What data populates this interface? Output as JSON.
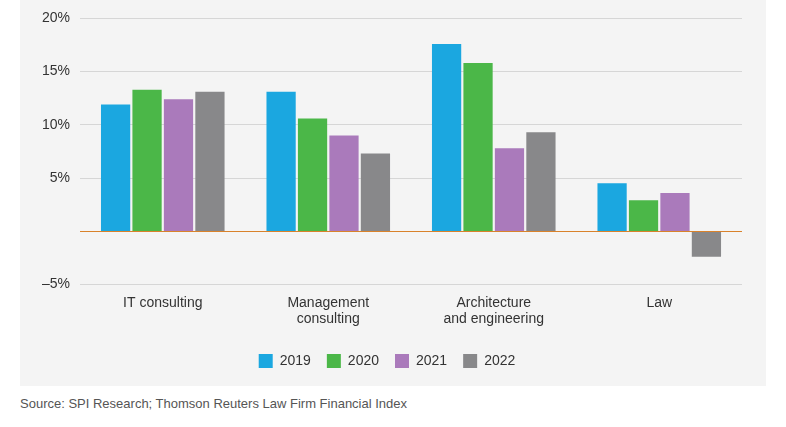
{
  "chart_data": {
    "type": "bar",
    "source": "Source: SPI Research; Thomson Reuters Law Firm Financial Index",
    "categories": [
      "IT consulting",
      "Management consulting",
      "Architecture and engineering",
      "Law"
    ],
    "series": [
      {
        "name": "2019",
        "color": "#1ba7e0",
        "values": [
          11.9,
          13.1,
          17.6,
          4.5
        ]
      },
      {
        "name": "2020",
        "color": "#4bb748",
        "values": [
          13.3,
          10.6,
          15.8,
          2.9
        ]
      },
      {
        "name": "2021",
        "color": "#aa7abb",
        "values": [
          12.4,
          9.0,
          7.8,
          3.6
        ]
      },
      {
        "name": "2022",
        "color": "#88888a",
        "values": [
          13.1,
          7.3,
          9.3,
          -2.4
        ]
      }
    ],
    "ylim": [
      -5,
      20
    ],
    "yticks": [
      {
        "value": -5,
        "label": "–5%"
      },
      {
        "value": 5,
        "label": "5%"
      },
      {
        "value": 10,
        "label": "10%"
      },
      {
        "value": 15,
        "label": "15%"
      },
      {
        "value": 20,
        "label": "20%"
      }
    ],
    "grid": true,
    "legend": "bottom"
  }
}
